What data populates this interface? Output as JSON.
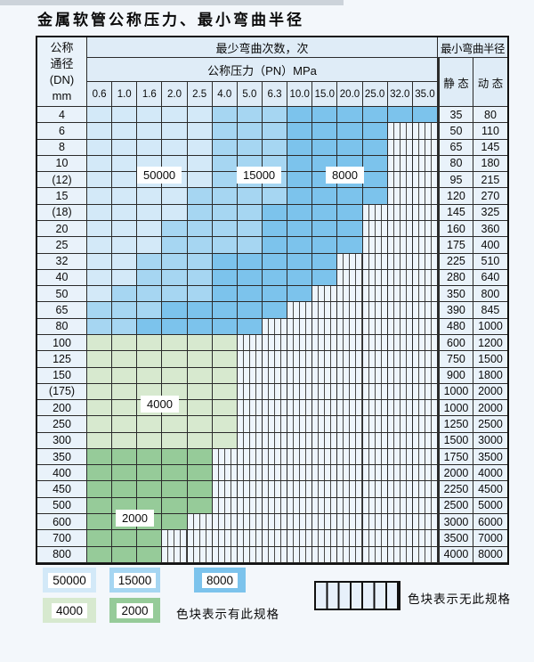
{
  "page": {
    "title": "金属软管公称压力、最小弯曲半径"
  },
  "table": {
    "header": {
      "dn_lines": [
        "公称",
        "通径",
        "(DN)",
        "mm"
      ],
      "min_cycles": "最少弯曲次数，次",
      "pressure": "公称压力（PN）MPa",
      "min_radius": "最小弯曲半径",
      "static": "静 态",
      "dynamic": "动 态"
    },
    "pressures": [
      "0.6",
      "1.0",
      "1.6",
      "2.0",
      "2.5",
      "4.0",
      "5.0",
      "6.3",
      "10.0",
      "15.0",
      "20.0",
      "25.0",
      "32.0",
      "35.0"
    ],
    "cell_classes": {
      "L": {
        "cycles": "50000",
        "color": "#d3e9f8"
      },
      "M": {
        "cycles": "15000",
        "color": "#a6d6f2"
      },
      "D": {
        "cycles": "8000",
        "color": "#7cc3ec"
      },
      "F": {
        "cycles": "4000",
        "color": "#d7e9cf"
      },
      "G": {
        "cycles": "2000",
        "color": "#96cb99"
      },
      "X": {
        "cycles": "none",
        "color": "hatch"
      }
    },
    "rows": [
      {
        "dn": "4",
        "cells": "LLLLLMMMDDDDDD",
        "static": "35",
        "dynamic": "80"
      },
      {
        "dn": "6",
        "cells": "LLLLLMMMDDDDXX",
        "static": "50",
        "dynamic": "110"
      },
      {
        "dn": "8",
        "cells": "LLLLLMMMDDDDXX",
        "static": "65",
        "dynamic": "145"
      },
      {
        "dn": "10",
        "cells": "LLLLLMMMDDDDXX",
        "static": "80",
        "dynamic": "180"
      },
      {
        "dn": "(12)",
        "cells": "LLLLLMMMDDDDXX",
        "static": "95",
        "dynamic": "215"
      },
      {
        "dn": "15",
        "cells": "LLLLMMMMDDDDXX",
        "static": "120",
        "dynamic": "270"
      },
      {
        "dn": "(18)",
        "cells": "LLLLMMMDDDDXXX",
        "static": "145",
        "dynamic": "325"
      },
      {
        "dn": "20",
        "cells": "LLLMMMMDDDDXXX",
        "static": "160",
        "dynamic": "360"
      },
      {
        "dn": "25",
        "cells": "LLLMMMMDDDDXXX",
        "static": "175",
        "dynamic": "400"
      },
      {
        "dn": "32",
        "cells": "LLMMMDDDDDXXXX",
        "static": "225",
        "dynamic": "510"
      },
      {
        "dn": "40",
        "cells": "LLMMMDDDDDXXXX",
        "static": "280",
        "dynamic": "640"
      },
      {
        "dn": "50",
        "cells": "LMMMMDDDDXXXXX",
        "static": "350",
        "dynamic": "800"
      },
      {
        "dn": "65",
        "cells": "MMMDDDDDXXXXXX",
        "static": "390",
        "dynamic": "845"
      },
      {
        "dn": "80",
        "cells": "MMDDDDDXXXXXXX",
        "static": "480",
        "dynamic": "1000"
      },
      {
        "dn": "100",
        "cells": "FFFFFFXXXXXXXX",
        "static": "600",
        "dynamic": "1200"
      },
      {
        "dn": "125",
        "cells": "FFFFFFXXXXXXXX",
        "static": "750",
        "dynamic": "1500"
      },
      {
        "dn": "150",
        "cells": "FFFFFFXXXXXXXX",
        "static": "900",
        "dynamic": "1800"
      },
      {
        "dn": "(175)",
        "cells": "FFFFFFXXXXXXXX",
        "static": "1000",
        "dynamic": "2000"
      },
      {
        "dn": "200",
        "cells": "FFFFFFXXXXXXXX",
        "static": "1000",
        "dynamic": "2000"
      },
      {
        "dn": "250",
        "cells": "FFFFFFXXXXXXXX",
        "static": "1250",
        "dynamic": "2500"
      },
      {
        "dn": "300",
        "cells": "FFFFFFXXXXXXXX",
        "static": "1500",
        "dynamic": "3000"
      },
      {
        "dn": "350",
        "cells": "GGGGGXXXXXXXXX",
        "static": "1750",
        "dynamic": "3500"
      },
      {
        "dn": "400",
        "cells": "GGGGGXXXXXXXXX",
        "static": "2000",
        "dynamic": "4000"
      },
      {
        "dn": "450",
        "cells": "GGGGGXXXXXXXXX",
        "static": "2250",
        "dynamic": "4500"
      },
      {
        "dn": "500",
        "cells": "GGGGGXXXXXXXXX",
        "static": "2500",
        "dynamic": "5000"
      },
      {
        "dn": "600",
        "cells": "GGGGXXXXXXXXXX",
        "static": "3000",
        "dynamic": "6000"
      },
      {
        "dn": "700",
        "cells": "GGGXXXXXXXXXXX",
        "static": "3500",
        "dynamic": "7000"
      },
      {
        "dn": "800",
        "cells": "GGGXXXXXXXXXXX",
        "static": "4000",
        "dynamic": "8000"
      }
    ],
    "overlays": [
      {
        "text": "50000"
      },
      {
        "text": "15000"
      },
      {
        "text": "8000"
      },
      {
        "text": "4000"
      },
      {
        "text": "2000"
      }
    ]
  },
  "legend": {
    "items": [
      {
        "label": "50000",
        "color": "#d3e9f8"
      },
      {
        "label": "15000",
        "color": "#a6d6f2"
      },
      {
        "label": "8000",
        "color": "#7cc3ec"
      },
      {
        "label": "4000",
        "color": "#d7e9cf"
      },
      {
        "label": "2000",
        "color": "#96cb99"
      }
    ],
    "has_note": "色块表示有此规格",
    "none_note": "色块表示无此规格"
  },
  "colors": {
    "grid": "#2b2b2b",
    "outer_border": "#111111",
    "header_bg": "#dfecf7",
    "label_bg": "#e9f2fa",
    "hatch_bg": "#eef5fc",
    "page_bg": "#f3f7fb"
  }
}
